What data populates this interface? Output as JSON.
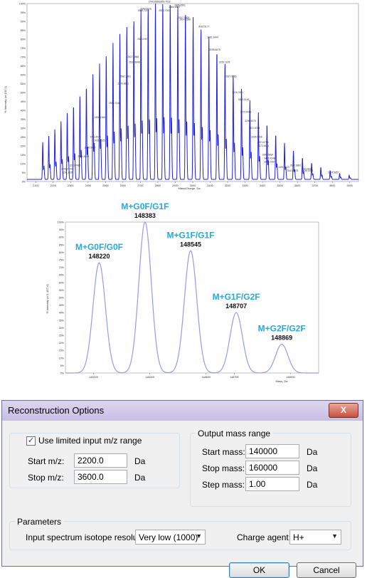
{
  "charts": {
    "spectrum": {
      "y_axis_label": "% Intensity (of 102.1)",
      "x_axis_label": "Mass/Charge, Da",
      "y_ticks": [
        "100%",
        "95%",
        "90%",
        "85%",
        "80%",
        "75%",
        "70%",
        "65%",
        "60%",
        "55%",
        "50%",
        "45%",
        "40%",
        "35%",
        "30%",
        "25%",
        "20%",
        "15%",
        "10%",
        "5%",
        "0%"
      ],
      "x_ticks": [
        "2100",
        "2200",
        "2300",
        "2400",
        "2500",
        "2600",
        "2700",
        "2800",
        "2900",
        "3000",
        "3100",
        "3200",
        "3300",
        "3400",
        "3500",
        "3600",
        "3700",
        "3800",
        "3900"
      ],
      "series_color": "#2020e0"
    },
    "reconstruction": {
      "y_axis_label": "% Intensity (of 1.1E7 6)",
      "x_axis_label": "Mass, Da",
      "y_ticks": [
        "100%",
        "95%",
        "90%",
        "85%",
        "80%",
        "75%",
        "70%",
        "65%",
        "60%",
        "55%",
        "50%",
        "45%",
        "40%",
        "35%",
        "30%",
        "25%",
        "20%",
        "15%",
        "10%",
        "5%",
        "0%"
      ],
      "x_ticks": [
        "148200",
        "148400",
        "148600",
        "148700",
        "148900"
      ],
      "series_color": "#9a9ae6",
      "label_color": "#2aa8d8"
    }
  },
  "chart_data": [
    {
      "type": "line",
      "title": "",
      "xlabel": "Mass/Charge, Da",
      "ylabel": "% Intensity (of 102.1)",
      "xlim": [
        2050,
        3950
      ],
      "ylim": [
        0,
        100
      ],
      "peaks": [
        {
          "x": 2246,
          "y": 6,
          "label": "2246.2799"
        },
        {
          "x": 2251,
          "y": 4,
          "label": "2251.7235"
        },
        {
          "x": 2293,
          "y": 8,
          "label": "2293.7480"
        },
        {
          "x": 2341,
          "y": 13,
          "label": "2341.8209"
        },
        {
          "x": 2380,
          "y": 18,
          "label": "2380.5090"
        },
        {
          "x": 2411,
          "y": 24,
          "label": "2411.6075"
        },
        {
          "x": 2433,
          "y": 22,
          "label": "2433.3525"
        },
        {
          "x": 2436,
          "y": 35,
          "label": "2436.1664"
        },
        {
          "x": 2519,
          "y": 43,
          "label": "2519.7246"
        },
        {
          "x": 2570,
          "y": 54,
          "label": "2570.8821"
        },
        {
          "x": 2582,
          "y": 58,
          "label": "2582.1381"
        },
        {
          "x": 2627,
          "y": 69,
          "label": "2627.0868"
        },
        {
          "x": 2633,
          "y": 66,
          "label": "2633.3848"
        },
        {
          "x": 2683,
          "y": 79,
          "label": "2683.0907"
        },
        {
          "x": 2685,
          "y": 95,
          "label": "2685.7219"
        },
        {
          "x": 2699,
          "y": 96,
          "label": "2699.0816"
        },
        {
          "x": 2746,
          "y": 100,
          "label": "2746.8565"
        },
        {
          "x": 2806,
          "y": 95,
          "label": "2806.7000"
        },
        {
          "x": 2809,
          "y": 100,
          "label": "2809.7032"
        },
        {
          "x": 2864,
          "y": 97,
          "label": "2864.6827"
        },
        {
          "x": 2895,
          "y": 98,
          "label": "2895.6561"
        },
        {
          "x": 2917,
          "y": 91,
          "label": "2917.0593"
        },
        {
          "x": 2924,
          "y": 90,
          "label": "2924.2588"
        },
        {
          "x": 3032,
          "y": 86,
          "label": "3032.5177"
        },
        {
          "x": 3082,
          "y": 80,
          "label": "3082.3444"
        },
        {
          "x": 3095,
          "y": 73,
          "label": "3095.6675"
        },
        {
          "x": 3150,
          "y": 66,
          "label": "3150.1678"
        },
        {
          "x": 3187,
          "y": 58,
          "label": "3187.5186"
        },
        {
          "x": 3226,
          "y": 49,
          "label": "3226.7651"
        },
        {
          "x": 3260,
          "y": 45,
          "label": "3260.0146"
        },
        {
          "x": 3272,
          "y": 38,
          "label": "3272.0446"
        },
        {
          "x": 3298,
          "y": 33,
          "label": "3298.4075"
        },
        {
          "x": 3321,
          "y": 29,
          "label": "3321.8784"
        },
        {
          "x": 3335,
          "y": 24,
          "label": "3335.6336"
        },
        {
          "x": 3371,
          "y": 21,
          "label": "3371.8794"
        },
        {
          "x": 3373,
          "y": 19,
          "label": "3373.0601"
        },
        {
          "x": 3398,
          "y": 14,
          "label": "3398.5634"
        },
        {
          "x": 3408,
          "y": 12,
          "label": "3408.4348"
        },
        {
          "x": 3409,
          "y": 10,
          "label": "3409.1087"
        },
        {
          "x": 3491,
          "y": 7,
          "label": "3491.1123"
        },
        {
          "x": 3541,
          "y": 5,
          "label": "3541.6075"
        },
        {
          "x": 3557,
          "y": 8,
          "label": "3557.6892"
        },
        {
          "x": 3623,
          "y": 6,
          "label": "3623.8218"
        },
        {
          "x": 3626,
          "y": 5,
          "label": "3626.1513"
        },
        {
          "x": 3774,
          "y": 4,
          "label": "3774.5857"
        }
      ]
    },
    {
      "type": "line",
      "title": "",
      "xlabel": "Mass, Da",
      "ylabel": "% Intensity (of 1.1E7 6)",
      "xlim": [
        148100,
        149000
      ],
      "ylim": [
        0,
        100
      ],
      "peaks": [
        {
          "x": 148220,
          "y": 73,
          "name": "M+G0F/G0F"
        },
        {
          "x": 148383,
          "y": 100,
          "name": "M+G0F/G1F"
        },
        {
          "x": 148545,
          "y": 81,
          "name": "M+G1F/G1F"
        },
        {
          "x": 148707,
          "y": 40,
          "name": "M+G1F/G2F"
        },
        {
          "x": 148869,
          "y": 19,
          "name": "M+G2F/G2F"
        }
      ]
    }
  ],
  "dialog": {
    "title": "Reconstruction Options",
    "close_label": "X",
    "input_group": {
      "checkbox_label": "Use limited input m/z range",
      "checked": true,
      "start_label": "Start m/z:",
      "start_value": "2200.0",
      "stop_label": "Stop m/z:",
      "stop_value": "3600.0",
      "unit": "Da"
    },
    "output_group": {
      "title": "Output mass range",
      "start_label": "Start mass:",
      "start_value": "140000",
      "stop_label": "Stop mass:",
      "stop_value": "160000",
      "step_label": "Step mass:",
      "step_value": "1.00",
      "unit": "Da"
    },
    "parameters": {
      "title": "Parameters",
      "resolution_label": "Input spectrum isotope resolution:",
      "resolution_value": "Very low (1000)",
      "charge_label": "Charge agent:",
      "charge_value": "H+"
    },
    "ok_label": "OK",
    "cancel_label": "Cancel"
  }
}
